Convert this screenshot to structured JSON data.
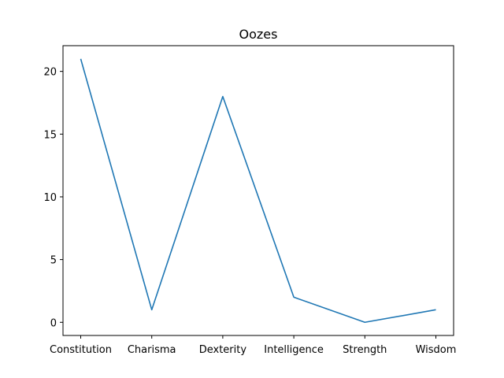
{
  "chart_data": {
    "type": "line",
    "title": "Oozes",
    "xlabel": "",
    "ylabel": "",
    "categories": [
      "Constitution",
      "Charisma",
      "Dexterity",
      "Intelligence",
      "Strength",
      "Wisdom"
    ],
    "series": [
      {
        "values": [
          21,
          1,
          18,
          2,
          0,
          1
        ],
        "color": "#1f77b4"
      }
    ],
    "ylim": [
      -1.05,
      22.05
    ],
    "yticks": [
      0,
      5,
      10,
      15,
      20
    ],
    "grid": false,
    "legend": "none"
  }
}
